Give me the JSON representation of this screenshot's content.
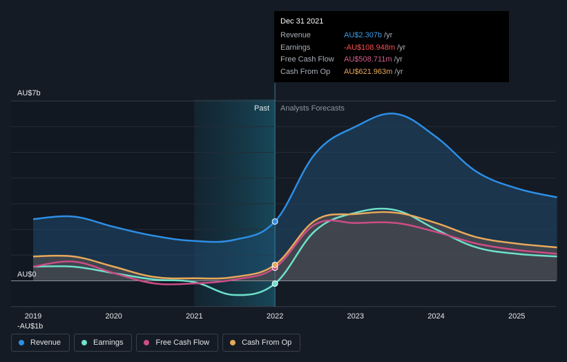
{
  "tooltip": {
    "date": "Dec 31 2021",
    "rows": [
      {
        "label": "Revenue",
        "value": "AU$2.307b",
        "unit": "/yr",
        "color": "#3e9be6"
      },
      {
        "label": "Earnings",
        "value": "-AU$108.948m",
        "unit": "/yr",
        "color": "#ff4d4d"
      },
      {
        "label": "Free Cash Flow",
        "value": "AU$508.711m",
        "unit": "/yr",
        "color": "#d45f8c"
      },
      {
        "label": "Cash From Op",
        "value": "AU$621.963m",
        "unit": "/yr",
        "color": "#e8a95b"
      }
    ]
  },
  "legend": [
    {
      "label": "Revenue",
      "color": "#2d8fe6"
    },
    {
      "label": "Earnings",
      "color": "#6fe0cc"
    },
    {
      "label": "Free Cash Flow",
      "color": "#cc4d86"
    },
    {
      "label": "Cash From Op",
      "color": "#e8a95b"
    }
  ],
  "chart_data": {
    "type": "line",
    "y_tick_labels": [
      "AU$7b",
      "AU$0",
      "-AU$1b"
    ],
    "x_tick_labels": [
      "2019",
      "2020",
      "2021",
      "2022",
      "2023",
      "2024",
      "2025"
    ],
    "section_labels": {
      "past": "Past",
      "forecast": "Analysts Forecasts"
    },
    "ylim": [
      -1,
      7
    ],
    "xlim": [
      2019.0,
      2025.5
    ],
    "highlight_range": [
      2021.0,
      2022.0
    ],
    "divider_x": 2022.0,
    "grid": true,
    "series": [
      {
        "name": "Revenue",
        "color": "#2d8fe6",
        "fill": true,
        "points": [
          [
            2019.0,
            2.4
          ],
          [
            2019.5,
            2.5
          ],
          [
            2020.0,
            2.1
          ],
          [
            2020.5,
            1.75
          ],
          [
            2021.0,
            1.55
          ],
          [
            2021.5,
            1.6
          ],
          [
            2022.0,
            2.307
          ],
          [
            2022.5,
            4.95
          ],
          [
            2023.0,
            6.0
          ],
          [
            2023.5,
            6.5
          ],
          [
            2024.0,
            5.6
          ],
          [
            2024.5,
            4.25
          ],
          [
            2025.0,
            3.6
          ],
          [
            2025.5,
            3.25
          ]
        ]
      },
      {
        "name": "Earnings",
        "color": "#6fe0cc",
        "fill": false,
        "points": [
          [
            2019.0,
            0.55
          ],
          [
            2019.5,
            0.55
          ],
          [
            2020.0,
            0.3
          ],
          [
            2020.5,
            0.05
          ],
          [
            2021.0,
            -0.05
          ],
          [
            2021.5,
            -0.55
          ],
          [
            2022.0,
            -0.109
          ],
          [
            2022.5,
            1.95
          ],
          [
            2023.0,
            2.65
          ],
          [
            2023.5,
            2.75
          ],
          [
            2024.0,
            2.0
          ],
          [
            2024.5,
            1.3
          ],
          [
            2025.0,
            1.05
          ],
          [
            2025.5,
            0.95
          ]
        ]
      },
      {
        "name": "Free Cash Flow",
        "color": "#cc4d86",
        "fill": false,
        "points": [
          [
            2019.0,
            0.55
          ],
          [
            2019.5,
            0.75
          ],
          [
            2020.0,
            0.3
          ],
          [
            2020.5,
            -0.1
          ],
          [
            2021.0,
            -0.1
          ],
          [
            2021.5,
            0.05
          ],
          [
            2022.0,
            0.509
          ],
          [
            2022.5,
            2.2
          ],
          [
            2023.0,
            2.25
          ],
          [
            2023.5,
            2.25
          ],
          [
            2024.0,
            1.9
          ],
          [
            2024.5,
            1.45
          ],
          [
            2025.0,
            1.2
          ],
          [
            2025.5,
            1.05
          ]
        ]
      },
      {
        "name": "Cash From Op",
        "color": "#e8a95b",
        "fill": true,
        "points": [
          [
            2019.0,
            0.95
          ],
          [
            2019.5,
            0.95
          ],
          [
            2020.0,
            0.55
          ],
          [
            2020.5,
            0.15
          ],
          [
            2021.0,
            0.1
          ],
          [
            2021.5,
            0.15
          ],
          [
            2022.0,
            0.622
          ],
          [
            2022.5,
            2.35
          ],
          [
            2023.0,
            2.6
          ],
          [
            2023.5,
            2.65
          ],
          [
            2024.0,
            2.25
          ],
          [
            2024.5,
            1.7
          ],
          [
            2025.0,
            1.45
          ],
          [
            2025.5,
            1.3
          ]
        ]
      }
    ]
  }
}
